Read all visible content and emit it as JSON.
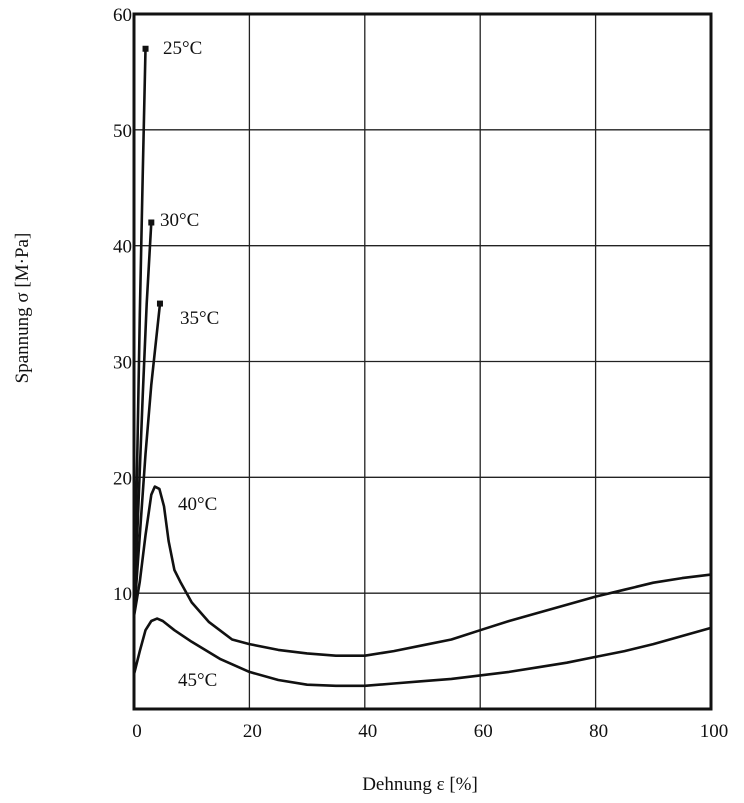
{
  "chart_data": {
    "type": "line",
    "xlabel": "Dehnung ε [%]",
    "ylabel": "Spannung σ [M·Pa]",
    "xlim": [
      0,
      100
    ],
    "ylim": [
      0,
      60
    ],
    "x_ticks": [
      "0",
      "20",
      "40",
      "60",
      "80",
      "100"
    ],
    "y_ticks": [
      "10",
      "20",
      "30",
      "40",
      "50",
      "60"
    ],
    "grid": true,
    "series": [
      {
        "name": "25°C",
        "x": [
          0,
          0.5,
          1,
          1.5,
          2.0
        ],
        "y": [
          8,
          20,
          34,
          46,
          57
        ]
      },
      {
        "name": "30°C",
        "x": [
          0,
          0.8,
          1.5,
          2.2,
          3.0
        ],
        "y": [
          8,
          18,
          27,
          35,
          42
        ]
      },
      {
        "name": "35°C",
        "x": [
          0,
          1.0,
          2.0,
          3.0,
          4.5
        ],
        "y": [
          8,
          15,
          22,
          28,
          35
        ]
      },
      {
        "name": "40°C",
        "x": [
          0,
          1,
          2,
          3,
          3.6,
          4.4,
          5.2,
          6,
          7,
          8,
          10,
          13,
          17,
          20,
          25,
          30,
          35,
          40,
          45,
          50,
          55,
          60,
          65,
          70,
          75,
          80,
          85,
          90,
          95,
          100
        ],
        "y": [
          8,
          11,
          15,
          18.5,
          19.2,
          19.0,
          17.5,
          14.5,
          12.0,
          11.0,
          9.2,
          7.5,
          6.0,
          5.6,
          5.1,
          4.8,
          4.6,
          4.6,
          5.0,
          5.5,
          6.0,
          6.8,
          7.6,
          8.3,
          9.0,
          9.7,
          10.3,
          10.9,
          11.3,
          11.6
        ]
      },
      {
        "name": "45°C",
        "x": [
          0,
          1,
          2,
          3,
          4,
          5,
          7,
          10,
          15,
          20,
          25,
          30,
          35,
          40,
          45,
          50,
          55,
          60,
          65,
          70,
          75,
          80,
          85,
          90,
          95,
          100
        ],
        "y": [
          3,
          5,
          6.8,
          7.6,
          7.8,
          7.6,
          6.8,
          5.8,
          4.3,
          3.2,
          2.5,
          2.1,
          2.0,
          2.0,
          2.2,
          2.4,
          2.6,
          2.9,
          3.2,
          3.6,
          4.0,
          4.5,
          5.0,
          5.6,
          6.3,
          7.0
        ]
      }
    ],
    "labels": [
      "25°C",
      "30°C",
      "35°C",
      "40°C",
      "45°C"
    ]
  }
}
